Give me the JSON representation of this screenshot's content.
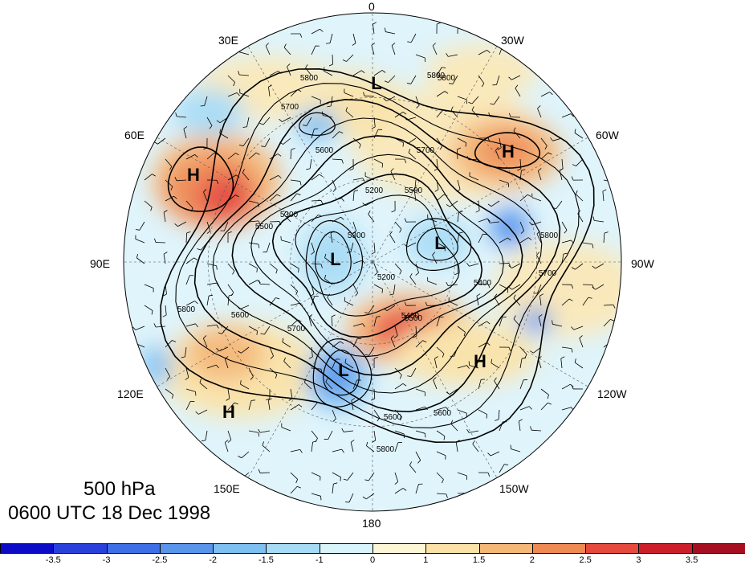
{
  "title": {
    "level": "500 hPa",
    "time": "0600 UTC 18 Dec 1998"
  },
  "lon_labels": {
    "l0": "0",
    "l30w": "30W",
    "l60w": "60W",
    "l90w": "90W",
    "l120w": "120W",
    "l150w": "150W",
    "l180": "180",
    "l150e": "150E",
    "l120e": "120E",
    "l90e": "90E",
    "l60e": "60E",
    "l30e": "30E"
  },
  "contour_labels": [
    "5800",
    "5800",
    "5700",
    "5600",
    "5700",
    "5500",
    "5800",
    "5200",
    "5300",
    "5500",
    "5400",
    "5300",
    "5200",
    "5400",
    "5800",
    "5700",
    "5800",
    "5600",
    "5500",
    "5700",
    "5600",
    "5800",
    "5600"
  ],
  "centers": [
    {
      "label": "L",
      "kind": "low"
    },
    {
      "label": "H",
      "kind": "high"
    },
    {
      "label": "H",
      "kind": "high"
    },
    {
      "label": "L",
      "kind": "low"
    },
    {
      "label": "L",
      "kind": "low"
    },
    {
      "label": "L",
      "kind": "low"
    },
    {
      "label": "H",
      "kind": "high"
    },
    {
      "label": "H",
      "kind": "high"
    }
  ],
  "colorbar": {
    "ticks": [
      "-3.5",
      "-3",
      "-2.5",
      "-2",
      "-1.5",
      "-1",
      "0",
      "1",
      "1.5",
      "2",
      "2.5",
      "3",
      "3.5"
    ],
    "colors": [
      "#0b0bc8",
      "#2a40dc",
      "#3f6fe6",
      "#5a95ec",
      "#7ec0f2",
      "#a8dcf6",
      "#d9f4fb",
      "#fdf7d8",
      "#fbe3a8",
      "#f6b877",
      "#f08a55",
      "#e64a3c",
      "#cc1f2a",
      "#a50f1f"
    ]
  }
}
